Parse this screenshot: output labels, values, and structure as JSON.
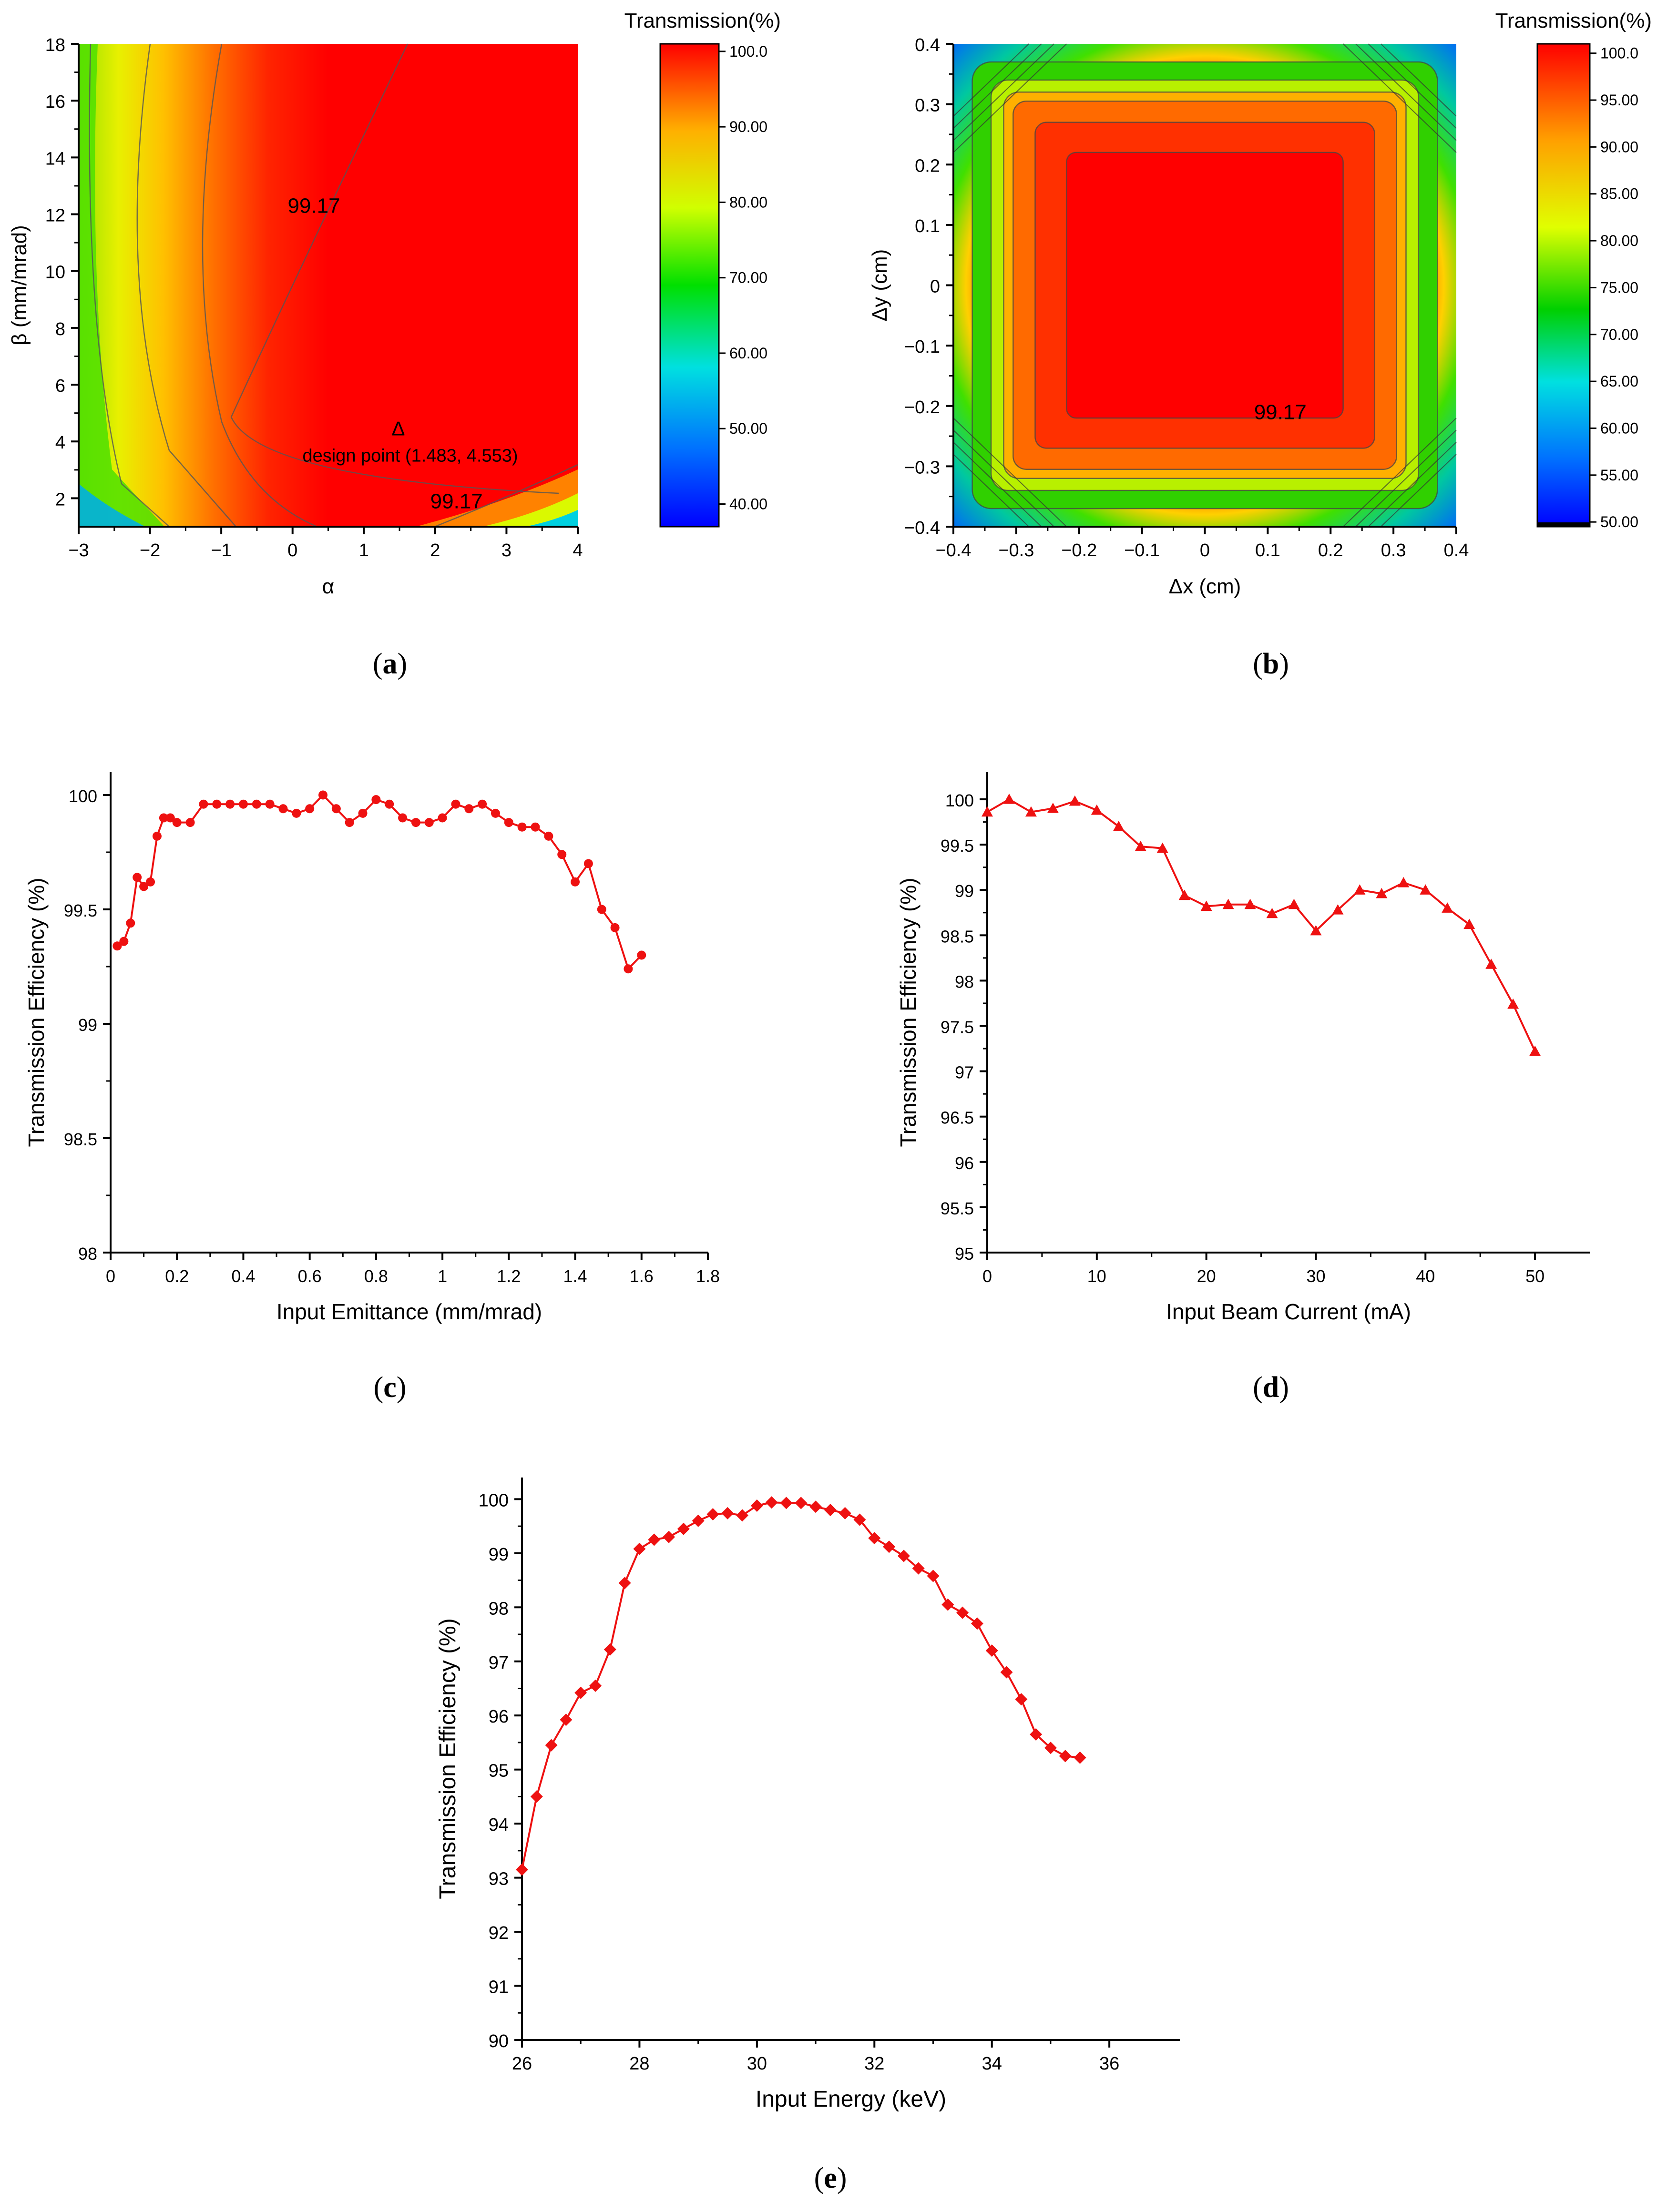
{
  "chart_data": [
    {
      "id": "a",
      "type": "heatmap",
      "panel_label": "a",
      "xlabel": "α",
      "ylabel": "β (mm/mrad)",
      "xlim": [
        -3,
        4
      ],
      "ylim": [
        1,
        18
      ],
      "xticks": [
        -3,
        -2,
        -1,
        0,
        1,
        2,
        3,
        4
      ],
      "xtick_labels": [
        "−3",
        "−2",
        "−1",
        "0",
        "1",
        "2",
        "3",
        "4"
      ],
      "yticks": [
        2,
        4,
        6,
        8,
        10,
        12,
        14,
        16,
        18
      ],
      "ytick_labels": [
        "2",
        "4",
        "6",
        "8",
        "10",
        "12",
        "14",
        "16",
        "18"
      ],
      "colorbar": {
        "title": "Transmission(%)",
        "range": [
          37,
          101
        ],
        "ticks": [
          40,
          50,
          60,
          70,
          80,
          90,
          100
        ],
        "tick_labels": [
          "40.00",
          "50.00",
          "60.00",
          "70.00",
          "80.00",
          "90.00",
          "100.0"
        ]
      },
      "contour_labels": [
        {
          "text": "99.17",
          "x": 0.3,
          "y": 12.3
        },
        {
          "text": "99.17",
          "x": 2.3,
          "y": 1.9
        }
      ],
      "design_point": {
        "x": 1.483,
        "y": 4.553,
        "marker": "Δ",
        "label": "design point (1.483, 4.553)"
      }
    },
    {
      "id": "b",
      "type": "heatmap",
      "panel_label": "b",
      "xlabel": "Δx (cm)",
      "ylabel": "Δy (cm)",
      "xlim": [
        -0.4,
        0.4
      ],
      "ylim": [
        -0.4,
        0.4
      ],
      "xticks": [
        -0.4,
        -0.3,
        -0.2,
        -0.1,
        0,
        0.1,
        0.2,
        0.3,
        0.4
      ],
      "xtick_labels": [
        "−0.4",
        "−0.3",
        "−0.2",
        "−0.1",
        "0",
        "0.1",
        "0.2",
        "0.3",
        "0.4"
      ],
      "yticks": [
        -0.4,
        -0.3,
        -0.2,
        -0.1,
        0,
        0.1,
        0.2,
        0.3,
        0.4
      ],
      "ytick_labels": [
        "−0.4",
        "−0.3",
        "−0.2",
        "−0.1",
        "0",
        "0.1",
        "0.2",
        "0.3",
        "0.4"
      ],
      "colorbar": {
        "title": "Transmission(%)",
        "range": [
          49.5,
          101
        ],
        "ticks": [
          50,
          55,
          60,
          65,
          70,
          75,
          80,
          85,
          90,
          95,
          100
        ],
        "tick_labels": [
          "50.00",
          "55.00",
          "60.00",
          "65.00",
          "70.00",
          "75.00",
          "80.00",
          "85.00",
          "90.00",
          "95.00",
          "100.0"
        ]
      },
      "contour_labels": [
        {
          "text": "99.17",
          "x": 0.12,
          "y": -0.21
        }
      ]
    },
    {
      "id": "c",
      "type": "line",
      "panel_label": "c",
      "marker": "circle",
      "color": "#ee1111",
      "xlabel": "Input Emittance (mm/mrad)",
      "ylabel": "Transmission Efficiency (%)",
      "xlim": [
        0,
        1.8
      ],
      "ylim": [
        98,
        100.1
      ],
      "xticks": [
        0,
        0.2,
        0.4,
        0.6,
        0.8,
        1,
        1.2,
        1.4,
        1.6,
        1.8
      ],
      "xtick_labels": [
        "0",
        "0.2",
        "0.4",
        "0.6",
        "0.8",
        "1",
        "1.2",
        "1.4",
        "1.6",
        "1.8"
      ],
      "yticks": [
        98,
        98.5,
        99,
        99.5,
        100
      ],
      "ytick_labels": [
        "98",
        "98.5",
        "99",
        "99.5",
        "100"
      ],
      "x": [
        0.02,
        0.04,
        0.06,
        0.08,
        0.1,
        0.12,
        0.14,
        0.16,
        0.18,
        0.2,
        0.24,
        0.28,
        0.32,
        0.36,
        0.4,
        0.44,
        0.48,
        0.52,
        0.56,
        0.6,
        0.64,
        0.68,
        0.72,
        0.76,
        0.8,
        0.84,
        0.88,
        0.92,
        0.96,
        1.0,
        1.04,
        1.08,
        1.12,
        1.16,
        1.2,
        1.24,
        1.28,
        1.32,
        1.36,
        1.4,
        1.44,
        1.48,
        1.52,
        1.56,
        1.6
      ],
      "y": [
        99.34,
        99.36,
        99.44,
        99.64,
        99.6,
        99.62,
        99.82,
        99.9,
        99.9,
        99.88,
        99.88,
        99.96,
        99.96,
        99.96,
        99.96,
        99.96,
        99.96,
        99.94,
        99.92,
        99.94,
        100.0,
        99.94,
        99.88,
        99.92,
        99.98,
        99.96,
        99.9,
        99.88,
        99.88,
        99.9,
        99.96,
        99.94,
        99.96,
        99.92,
        99.88,
        99.86,
        99.86,
        99.82,
        99.74,
        99.62,
        99.7,
        99.5,
        99.42,
        99.24,
        99.3
      ]
    },
    {
      "id": "d",
      "type": "line",
      "panel_label": "d",
      "marker": "triangle",
      "color": "#ee1111",
      "xlabel": "Input Beam Current (mA)",
      "ylabel": "Transmission Efficiency (%)",
      "xlim": [
        0,
        55
      ],
      "ylim": [
        95,
        100.3
      ],
      "xticks": [
        0,
        10,
        20,
        30,
        40,
        50
      ],
      "xtick_labels": [
        "0",
        "10",
        "20",
        "30",
        "40",
        "50"
      ],
      "yticks": [
        95,
        95.5,
        96,
        96.5,
        97,
        97.5,
        98,
        98.5,
        99,
        99.5,
        100
      ],
      "ytick_labels": [
        "95",
        "95.5",
        "96",
        "96.5",
        "97",
        "97.5",
        "98",
        "98.5",
        "99",
        "99.5",
        "100"
      ],
      "x": [
        0,
        2,
        4,
        6,
        8,
        10,
        12,
        14,
        16,
        18,
        20,
        22,
        24,
        26,
        28,
        30,
        32,
        34,
        36,
        38,
        40,
        42,
        44,
        46,
        48,
        50
      ],
      "y": [
        99.86,
        100.0,
        99.86,
        99.9,
        99.98,
        99.88,
        99.7,
        99.48,
        99.46,
        98.94,
        98.82,
        98.84,
        98.84,
        98.74,
        98.84,
        98.55,
        98.78,
        99.0,
        98.96,
        99.08,
        99.0,
        98.8,
        98.62,
        98.18,
        97.74,
        97.22
      ]
    },
    {
      "id": "e",
      "type": "line",
      "panel_label": "e",
      "marker": "diamond",
      "color": "#ee1111",
      "xlabel": "Input Energy (keV)",
      "ylabel": "Transmission Efficiency (%)",
      "xlim": [
        26,
        37.2
      ],
      "ylim": [
        90,
        100.4
      ],
      "xticks": [
        26,
        28,
        30,
        32,
        34,
        36
      ],
      "xtick_labels": [
        "26",
        "28",
        "30",
        "32",
        "34",
        "36"
      ],
      "yticks": [
        90,
        91,
        92,
        93,
        94,
        95,
        96,
        97,
        98,
        99,
        100
      ],
      "ytick_labels": [
        "90",
        "91",
        "92",
        "93",
        "94",
        "95",
        "96",
        "97",
        "98",
        "99",
        "100"
      ],
      "x": [
        26.0,
        26.25,
        26.5,
        26.75,
        27.0,
        27.25,
        27.5,
        27.75,
        28.0,
        28.25,
        28.5,
        28.75,
        29.0,
        29.25,
        29.5,
        29.75,
        30.0,
        30.25,
        30.5,
        30.75,
        31.0,
        31.25,
        31.5,
        31.75,
        32.0,
        32.25,
        32.5,
        32.75,
        33.0,
        33.25,
        33.5,
        33.75,
        34.0,
        34.25,
        34.5,
        34.75,
        35.0,
        35.25,
        35.5
      ],
      "y": [
        93.15,
        94.5,
        95.45,
        95.92,
        96.42,
        96.55,
        97.22,
        98.45,
        99.08,
        99.25,
        99.3,
        99.45,
        99.6,
        99.72,
        99.74,
        99.7,
        99.88,
        99.94,
        99.93,
        99.93,
        99.86,
        99.8,
        99.74,
        99.62,
        99.28,
        99.12,
        98.95,
        98.72,
        98.58,
        98.05,
        97.9,
        97.7,
        97.2,
        96.8,
        96.3,
        95.65,
        95.4,
        95.25,
        95.22
      ]
    }
  ]
}
